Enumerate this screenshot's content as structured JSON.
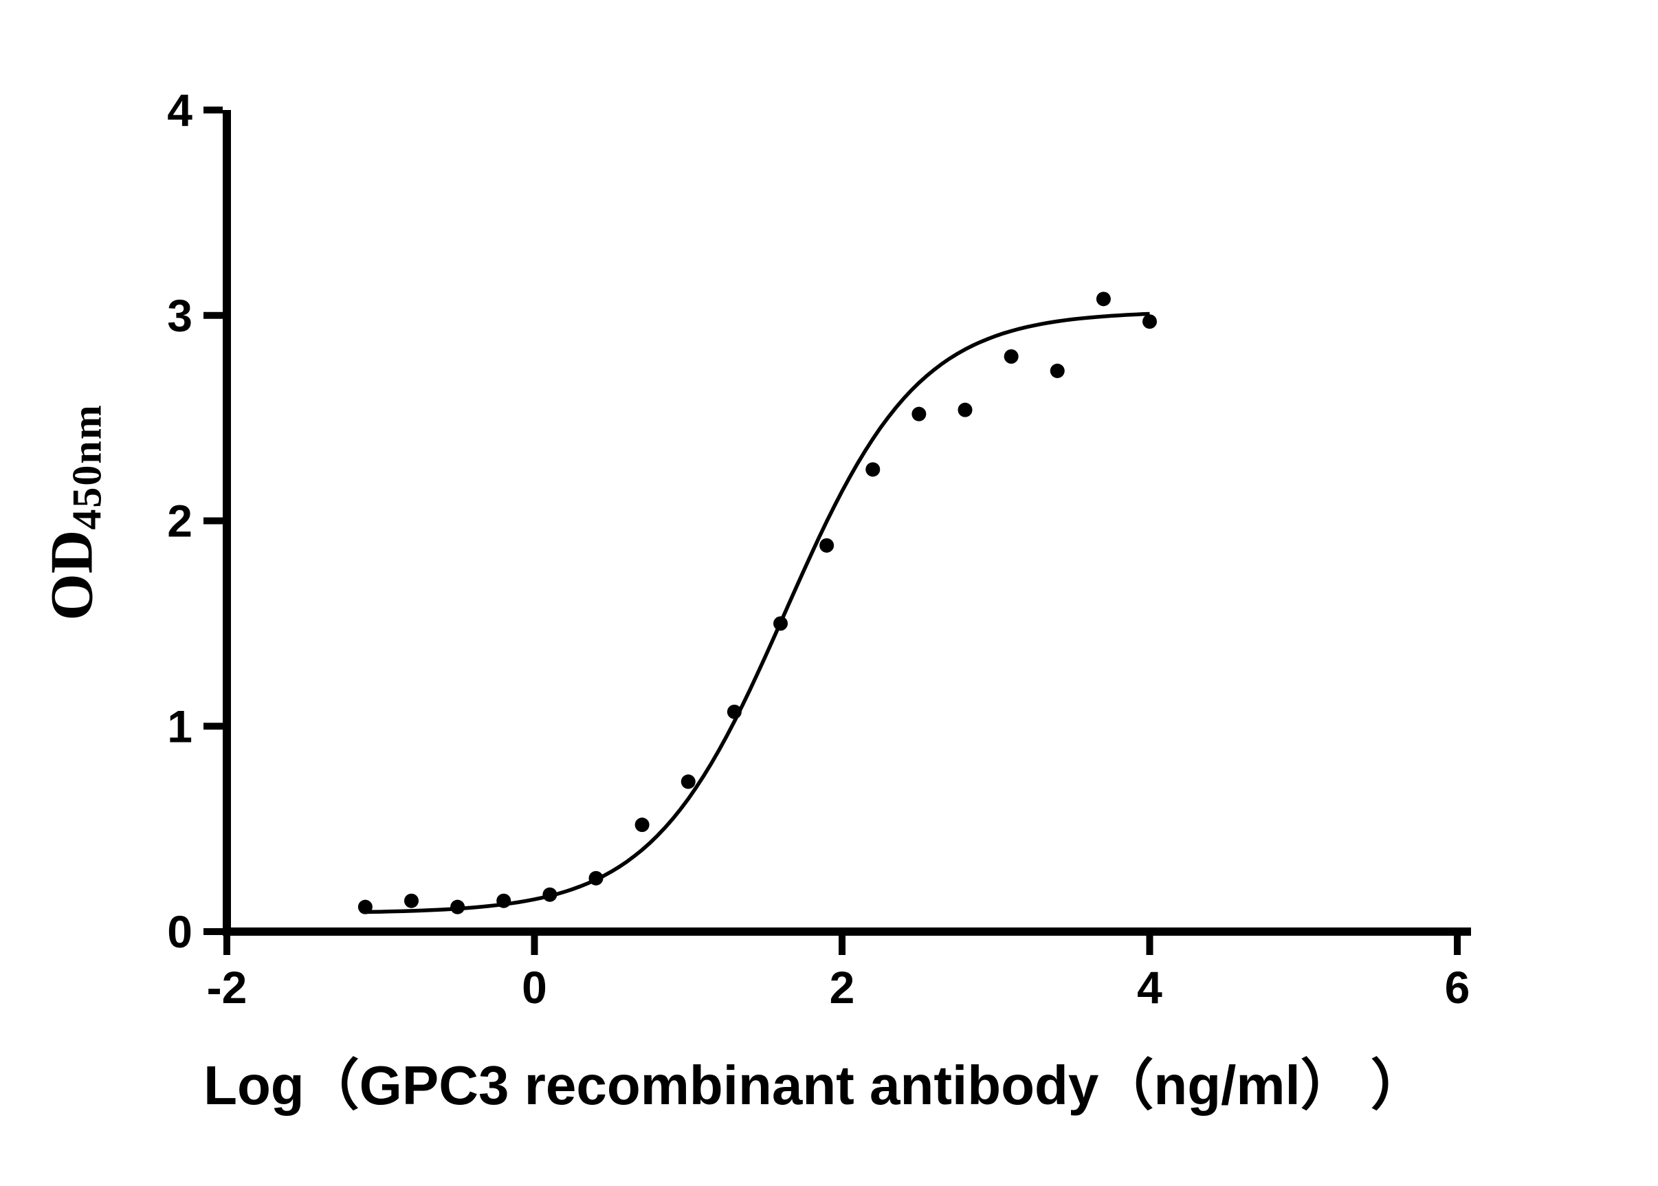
{
  "figure": {
    "background": "#ffffff"
  },
  "chart_data": {
    "type": "scatter",
    "title": "",
    "xlabel": "Log（GPC3 recombinant antibody（ng/ml） ）",
    "ylabel_main": "OD",
    "ylabel_sub": "450nm",
    "xlim": [
      -2,
      6
    ],
    "ylim": [
      0,
      4
    ],
    "x_ticks": [
      -2,
      0,
      2,
      4,
      6
    ],
    "y_ticks": [
      0,
      1,
      2,
      3,
      4
    ],
    "grid": false,
    "legend": "none",
    "marker_color": "#000000",
    "curve_color": "#000000",
    "points": [
      {
        "x": -1.1,
        "y": 0.12
      },
      {
        "x": -0.8,
        "y": 0.15
      },
      {
        "x": -0.5,
        "y": 0.12
      },
      {
        "x": -0.2,
        "y": 0.15
      },
      {
        "x": 0.1,
        "y": 0.18
      },
      {
        "x": 0.4,
        "y": 0.26
      },
      {
        "x": 0.7,
        "y": 0.52
      },
      {
        "x": 1.0,
        "y": 0.73
      },
      {
        "x": 1.3,
        "y": 1.07
      },
      {
        "x": 1.6,
        "y": 1.5
      },
      {
        "x": 1.9,
        "y": 1.88
      },
      {
        "x": 2.2,
        "y": 2.25
      },
      {
        "x": 2.5,
        "y": 2.52
      },
      {
        "x": 2.8,
        "y": 2.54
      },
      {
        "x": 3.1,
        "y": 2.8
      },
      {
        "x": 3.4,
        "y": 2.73
      },
      {
        "x": 3.7,
        "y": 3.08
      },
      {
        "x": 4.0,
        "y": 2.97
      }
    ],
    "fit_curve": {
      "model": "4PL-sigmoid",
      "bottom": 0.09,
      "top": 3.02,
      "log_ec50": 1.63,
      "hill_slope": 1.0,
      "x_start": -1.1,
      "x_end": 4.0
    }
  }
}
